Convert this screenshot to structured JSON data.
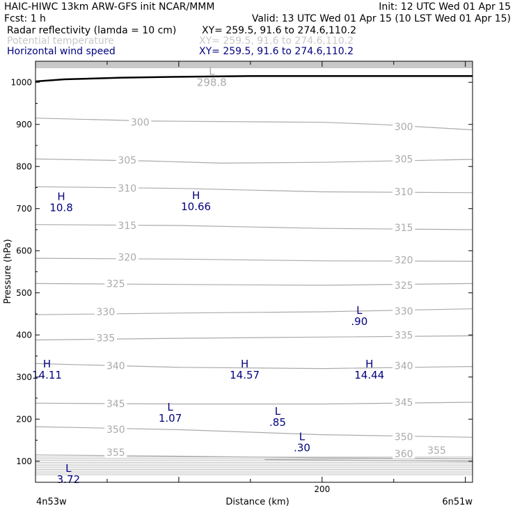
{
  "header": {
    "line1_left": "HAIC-HIWC 13km ARW-GFS init   NCAR/MMM",
    "line1_right": "Init: 12 UTC Wed 01 Apr 15",
    "line2_left": "Fcst:    1 h",
    "line2_right": "Valid: 13 UTC Wed 01 Apr 15 (10 LST Wed 01 Apr 15)",
    "line3_left": "Radar reflectivity (lamda = 10 cm)",
    "line3_right": "XY= 259.5, 91.6 to 274.6,110.2",
    "line4_left": "Potential temperature",
    "line4_right": "XY= 259.5, 91.6 to 274.6,110.2",
    "line5_left": "Horizontal wind speed",
    "line5_right": "XY= 259.5, 91.6 to 274.6,110.2"
  },
  "colors": {
    "theta_contour": "#aaaaaa",
    "wind_label": "#000080",
    "terrain": "#000000",
    "upper_band": "#c8c8c8"
  },
  "chart_data": {
    "type": "line",
    "xlabel": "Distance (km)",
    "ylabel": "Pressure (hPa)",
    "xlim": [
      0,
      305
    ],
    "ylim": [
      1050,
      50
    ],
    "y_inverted": true,
    "x_ticks": [
      {
        "value": 200,
        "label": "200"
      }
    ],
    "x_end_labels": {
      "left": "4n53w",
      "right": "6n51w"
    },
    "y_ticks": [
      100,
      200,
      300,
      400,
      500,
      600,
      700,
      800,
      900,
      1000
    ],
    "theta_contours": [
      {
        "level": "355",
        "points": [
          [
            0,
            115
          ],
          [
            100,
            112
          ],
          [
            200,
            108
          ],
          [
            305,
            106
          ]
        ],
        "labels": [
          {
            "x": 56,
            "p": 121
          },
          {
            "x": 280,
            "p": 126
          }
        ]
      },
      {
        "level": "360",
        "points": [
          [
            160,
            104
          ],
          [
            305,
            100
          ]
        ],
        "labels": [
          {
            "x": 257,
            "p": 118
          }
        ]
      },
      {
        "level": "350",
        "points": [
          [
            0,
            182
          ],
          [
            100,
            175
          ],
          [
            200,
            163
          ],
          [
            305,
            157
          ]
        ],
        "labels": [
          {
            "x": 56,
            "p": 176
          },
          {
            "x": 257,
            "p": 158
          }
        ]
      },
      {
        "level": "345",
        "points": [
          [
            0,
            238
          ],
          [
            100,
            236
          ],
          [
            200,
            236
          ],
          [
            305,
            240
          ]
        ],
        "labels": [
          {
            "x": 56,
            "p": 237
          },
          {
            "x": 257,
            "p": 240
          }
        ]
      },
      {
        "level": "340",
        "points": [
          [
            0,
            332
          ],
          [
            100,
            323
          ],
          [
            200,
            320
          ],
          [
            305,
            325
          ]
        ],
        "labels": [
          {
            "x": 56,
            "p": 327
          },
          {
            "x": 257,
            "p": 327
          }
        ]
      },
      {
        "level": "335",
        "points": [
          [
            0,
            388
          ],
          [
            100,
            392
          ],
          [
            200,
            395
          ],
          [
            305,
            398
          ]
        ],
        "labels": [
          {
            "x": 49,
            "p": 393
          },
          {
            "x": 257,
            "p": 400
          }
        ]
      },
      {
        "level": "330",
        "points": [
          [
            0,
            448
          ],
          [
            100,
            452
          ],
          [
            200,
            455
          ],
          [
            305,
            462
          ]
        ],
        "labels": [
          {
            "x": 49,
            "p": 455
          },
          {
            "x": 257,
            "p": 457
          }
        ]
      },
      {
        "level": "325",
        "points": [
          [
            0,
            522
          ],
          [
            100,
            520
          ],
          [
            200,
            518
          ],
          [
            305,
            522
          ]
        ],
        "labels": [
          {
            "x": 56,
            "p": 522
          },
          {
            "x": 257,
            "p": 518
          }
        ]
      },
      {
        "level": "320",
        "points": [
          [
            0,
            582
          ],
          [
            100,
            580
          ],
          [
            200,
            576
          ],
          [
            305,
            575
          ]
        ],
        "labels": [
          {
            "x": 64,
            "p": 585
          },
          {
            "x": 257,
            "p": 578
          }
        ]
      },
      {
        "level": "315",
        "points": [
          [
            0,
            662
          ],
          [
            100,
            660
          ],
          [
            200,
            653
          ],
          [
            305,
            650
          ]
        ],
        "labels": [
          {
            "x": 64,
            "p": 660
          },
          {
            "x": 257,
            "p": 655
          }
        ]
      },
      {
        "level": "310",
        "points": [
          [
            0,
            752
          ],
          [
            100,
            748
          ],
          [
            200,
            740
          ],
          [
            305,
            738
          ]
        ],
        "labels": [
          {
            "x": 64,
            "p": 748
          },
          {
            "x": 257,
            "p": 740
          }
        ]
      },
      {
        "level": "305",
        "points": [
          [
            0,
            818
          ],
          [
            80,
            813
          ],
          [
            130,
            808
          ],
          [
            200,
            810
          ],
          [
            305,
            817
          ]
        ],
        "labels": [
          {
            "x": 64,
            "p": 815
          },
          {
            "x": 257,
            "p": 818
          }
        ]
      },
      {
        "level": "300",
        "points": [
          [
            0,
            915
          ],
          [
            80,
            908
          ],
          [
            200,
            905
          ],
          [
            240,
            900
          ],
          [
            305,
            887
          ]
        ],
        "labels": [
          {
            "x": 73,
            "p": 905
          },
          {
            "x": 257,
            "p": 895
          }
        ]
      }
    ],
    "terrain_profile": [
      [
        0,
        1002
      ],
      [
        20,
        1007
      ],
      [
        60,
        1011
      ],
      [
        100,
        1013
      ],
      [
        150,
        1015
      ],
      [
        305,
        1015
      ]
    ],
    "extrema": [
      {
        "type": "L",
        "value": "3.72",
        "x": 23,
        "p": 70,
        "field": "wind"
      },
      {
        "type": "L",
        "value": ".30",
        "x": 186,
        "p": 145,
        "field": "wind"
      },
      {
        "type": "L",
        "value": "1.07",
        "x": 94,
        "p": 215,
        "field": "wind"
      },
      {
        "type": "L",
        "value": ".85",
        "x": 169,
        "p": 205,
        "field": "wind"
      },
      {
        "type": "H",
        "value": "14.11",
        "x": 8,
        "p": 318,
        "field": "wind"
      },
      {
        "type": "H",
        "value": "14.57",
        "x": 146,
        "p": 318,
        "field": "wind"
      },
      {
        "type": "H",
        "value": "14.44",
        "x": 233,
        "p": 318,
        "field": "wind"
      },
      {
        "type": "L",
        "value": ".90",
        "x": 226,
        "p": 445,
        "field": "wind"
      },
      {
        "type": "H",
        "value": "10.8",
        "x": 18,
        "p": 715,
        "field": "wind"
      },
      {
        "type": "H",
        "value": "10.66",
        "x": 112,
        "p": 718,
        "field": "wind"
      },
      {
        "type": "L",
        "value": "298.8",
        "x": 123,
        "p": 1013,
        "field": "theta"
      }
    ]
  }
}
